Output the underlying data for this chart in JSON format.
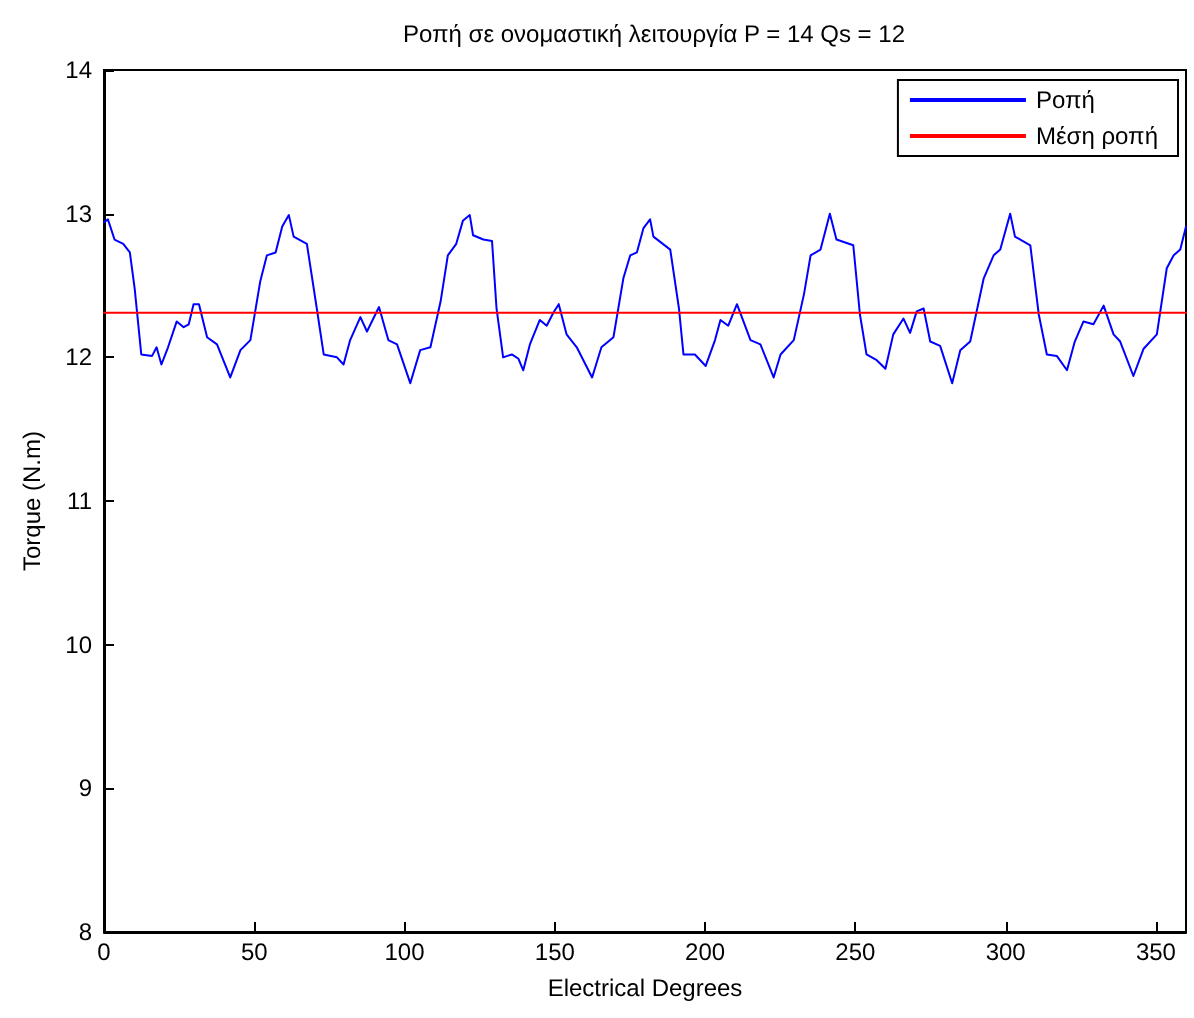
{
  "chart_data": {
    "type": "line",
    "title": "Ροπή σε ονομαστική λειτουργία P = 14 Qs = 12",
    "xlabel": "Electrical Degrees",
    "ylabel": "Torque (N.m)",
    "xlim": [
      0,
      360
    ],
    "xticks": [
      0,
      50,
      100,
      150,
      200,
      250,
      300,
      350
    ],
    "ylim": [
      8,
      14
    ],
    "yticks": [
      8,
      9,
      10,
      11,
      12,
      13,
      14
    ],
    "grid": false,
    "legend": "top right",
    "marker": "none",
    "line_style": "solid",
    "series": [
      {
        "name": "Ροπή",
        "color": "#0000ff",
        "x": [
          0,
          1.3,
          3.5,
          6.4,
          8.6,
          10.2,
          12.4,
          16.0,
          17.5,
          19.1,
          21.3,
          24.2,
          26.5,
          28.2,
          29.8,
          31.6,
          34.3,
          37.6,
          42.0,
          45.4,
          48.7,
          52.0,
          54.2,
          57.1,
          59.3,
          61.5,
          63.1,
          67.5,
          70.8,
          73.1,
          77.5,
          79.7,
          81.9,
          85.3,
          87.5,
          91.5,
          94.6,
          97.5,
          101.9,
          105.2,
          108.6,
          112.0,
          114.4,
          117.2,
          119.4,
          121.7,
          122.8,
          126.2,
          129.1,
          130.6,
          132.8,
          135.7,
          137.9,
          139.5,
          141.7,
          145.0,
          147.3,
          149.5,
          151.3,
          153.9,
          157.3,
          162.4,
          165.5,
          169.5,
          172.8,
          175.1,
          177.3,
          179.5,
          181.7,
          182.8,
          188.4,
          191.3,
          192.8,
          196.6,
          200.2,
          203.3,
          205.1,
          207.7,
          210.6,
          215.1,
          218.4,
          222.8,
          225.1,
          229.5,
          232.9,
          235.1,
          238.4,
          241.5,
          243.7,
          249.3,
          251.5,
          253.7,
          257.1,
          260.0,
          262.6,
          266.0,
          268.2,
          270.4,
          272.7,
          274.9,
          278.2,
          282.2,
          284.9,
          288.2,
          292.7,
          296.0,
          298.2,
          301.5,
          303.1,
          308.2,
          311.0,
          313.7,
          317.0,
          320.4,
          323.0,
          325.9,
          329.2,
          332.6,
          335.9,
          338.1,
          342.5,
          345.9,
          350.3,
          353.6,
          355.9,
          358.1,
          360
        ],
        "values": [
          12.94,
          12.96,
          12.82,
          12.79,
          12.73,
          12.48,
          12.02,
          12.01,
          12.07,
          11.95,
          12.07,
          12.25,
          12.21,
          12.23,
          12.37,
          12.37,
          12.14,
          12.09,
          11.86,
          12.05,
          12.12,
          12.53,
          12.71,
          12.73,
          12.91,
          12.99,
          12.84,
          12.79,
          12.34,
          12.02,
          12.0,
          11.95,
          12.12,
          12.28,
          12.18,
          12.35,
          12.12,
          12.09,
          11.82,
          12.05,
          12.07,
          12.39,
          12.71,
          12.79,
          12.95,
          12.99,
          12.85,
          12.82,
          12.81,
          12.34,
          12.0,
          12.02,
          11.99,
          11.91,
          12.09,
          12.26,
          12.22,
          12.31,
          12.37,
          12.16,
          12.07,
          11.86,
          12.07,
          12.14,
          12.55,
          12.71,
          12.73,
          12.9,
          12.96,
          12.84,
          12.75,
          12.34,
          12.02,
          12.02,
          11.94,
          12.12,
          12.26,
          12.22,
          12.37,
          12.12,
          12.09,
          11.86,
          12.02,
          12.12,
          12.44,
          12.71,
          12.75,
          13.0,
          12.82,
          12.78,
          12.3,
          12.02,
          11.98,
          11.92,
          12.16,
          12.27,
          12.17,
          12.32,
          12.34,
          12.11,
          12.08,
          11.82,
          12.05,
          12.11,
          12.55,
          12.71,
          12.75,
          13.0,
          12.84,
          12.78,
          12.3,
          12.02,
          12.01,
          11.91,
          12.11,
          12.25,
          12.23,
          12.36,
          12.16,
          12.11,
          11.87,
          12.06,
          12.16,
          12.62,
          12.71,
          12.75,
          12.91
        ]
      },
      {
        "name": "Μέση ροπή",
        "color": "#ff0000",
        "x": [
          0,
          360
        ],
        "values": [
          12.31,
          12.31
        ]
      }
    ]
  }
}
